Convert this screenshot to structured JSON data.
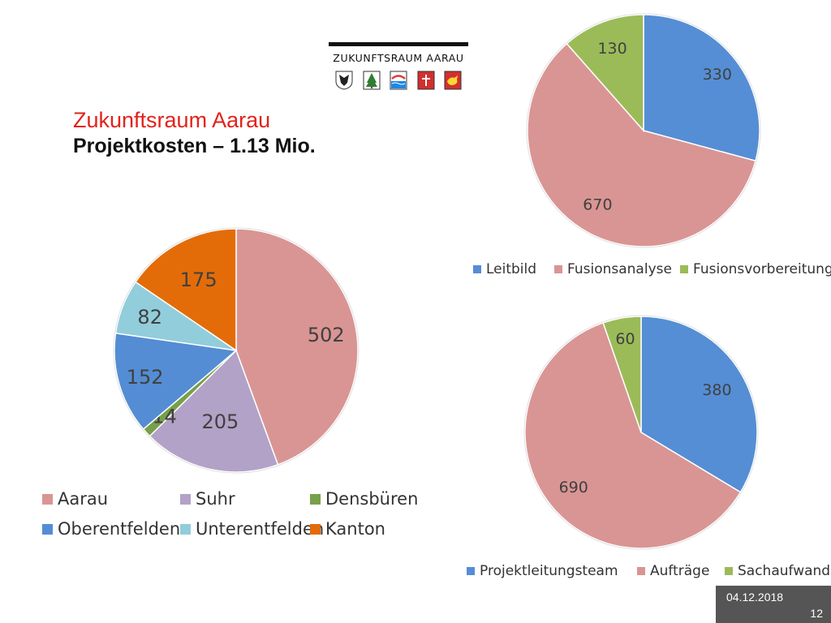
{
  "logo": {
    "text": "ZUKUNFTSRAUM AARAU",
    "crests": [
      "aarau-crest-icon",
      "densbueren-crest-icon",
      "unterentfelden-crest-icon",
      "oberentfelden-crest-icon",
      "suhr-crest-icon"
    ]
  },
  "title": {
    "line1": "Zukunftsraum Aarau",
    "line2": "Projektkosten – 1.13 Mio."
  },
  "footer": {
    "date": "04.12.2018",
    "page": "12"
  },
  "chart_data": [
    {
      "type": "pie",
      "categories": [
        "Aarau",
        "Suhr",
        "Densbüren",
        "Oberentfelden",
        "Unterentfelden",
        "Kanton"
      ],
      "values": [
        502,
        205,
        14,
        152,
        82,
        175
      ],
      "colors": [
        "#d99594",
        "#b2a2c7",
        "#77a04a",
        "#548dd4",
        "#92cddc",
        "#e36c09"
      ],
      "legend_position": "bottom"
    },
    {
      "type": "pie",
      "categories": [
        "Leitbild",
        "Fusionsanalyse",
        "Fusionsvorbereitung"
      ],
      "values": [
        330,
        670,
        130
      ],
      "colors": [
        "#558ed5",
        "#d99594",
        "#9bbb59"
      ],
      "legend_position": "bottom"
    },
    {
      "type": "pie",
      "categories": [
        "Projektleitungsteam",
        "Aufträge",
        "Sachaufwand"
      ],
      "values": [
        380,
        690,
        60
      ],
      "colors": [
        "#558ed5",
        "#d99594",
        "#9bbb59"
      ],
      "legend_position": "bottom"
    }
  ]
}
